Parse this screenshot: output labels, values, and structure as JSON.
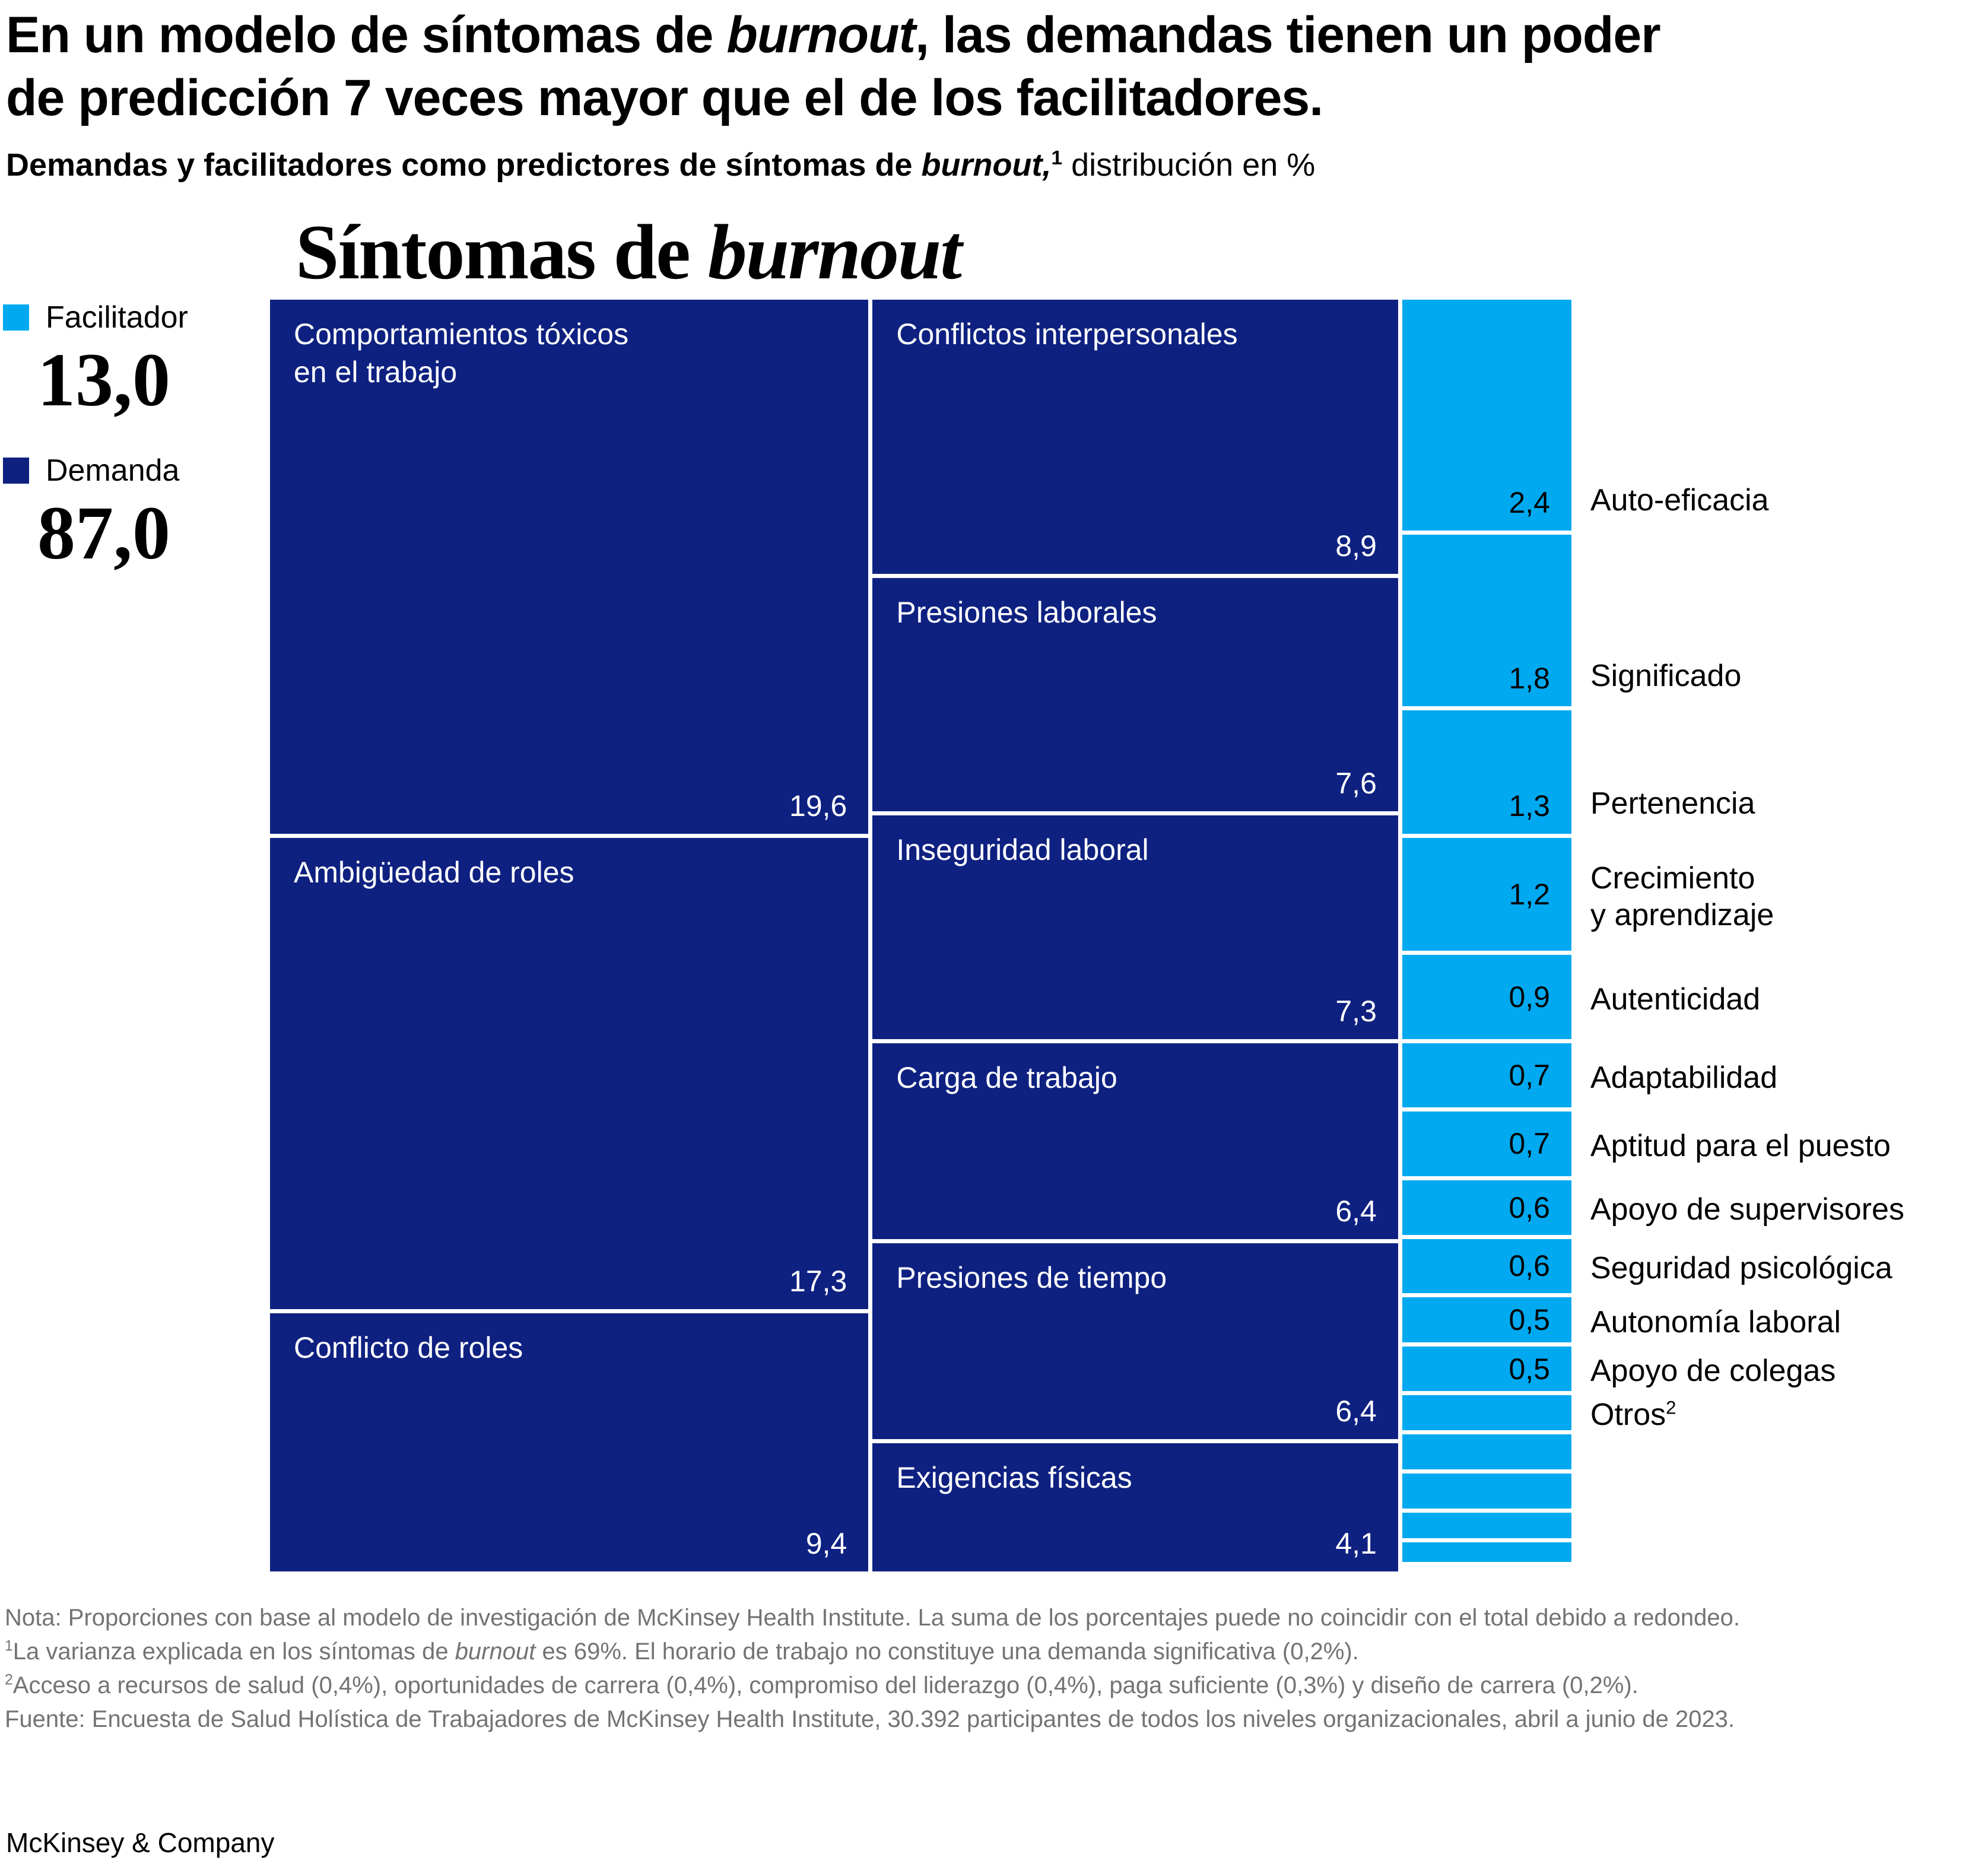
{
  "header": {
    "title_line1_pre": "En un modelo de síntomas de ",
    "title_line1_italic": "burnout",
    "title_line1_post": ", las demandas tienen un poder",
    "title_line2": "de predicción 7 veces mayor que el de los facilitadores.",
    "subtitle_bold": "Demandas y facilitadores como predictores de síntomas de ",
    "subtitle_bold_italic": "burnout,",
    "subtitle_sup": "1",
    "subtitle_rest": " distribución en %"
  },
  "chart_data": {
    "type": "marimekko",
    "title_pre": "Síntomas de ",
    "title_italic": "burnout",
    "unit": "%",
    "legend": [
      {
        "label": "Facilitador",
        "value": "13,0",
        "color": "#00a9f0"
      },
      {
        "label": "Demanda",
        "value": "87,0",
        "color": "#0e2181"
      }
    ],
    "columns": [
      {
        "id": "demandas-1",
        "group": "Demanda",
        "color": "#0e2181",
        "total": 46.3,
        "blocks": [
          {
            "label": "Comportamientos tóxicos\nen el trabajo",
            "value": 19.6,
            "display": "19,6"
          },
          {
            "label": "Ambigüedad de roles",
            "value": 17.3,
            "display": "17,3"
          },
          {
            "label": "Conflicto de roles",
            "value": 9.4,
            "display": "9,4"
          }
        ]
      },
      {
        "id": "demandas-2",
        "group": "Demanda",
        "color": "#0e2181",
        "total": 40.7,
        "blocks": [
          {
            "label": "Conflictos interpersonales",
            "value": 8.9,
            "display": "8,9"
          },
          {
            "label": "Presiones laborales",
            "value": 7.6,
            "display": "7,6"
          },
          {
            "label": "Inseguridad laboral",
            "value": 7.3,
            "display": "7,3"
          },
          {
            "label": "Carga de trabajo",
            "value": 6.4,
            "display": "6,4"
          },
          {
            "label": "Presiones de tiempo",
            "value": 6.4,
            "display": "6,4"
          },
          {
            "label": "Exigencias físicas",
            "value": 4.1,
            "display": "4,1"
          }
        ]
      },
      {
        "id": "facilitadores",
        "group": "Facilitador",
        "color": "#00a9f0",
        "total": 13.0,
        "blocks": [
          {
            "ext_label": "Auto-eficacia",
            "value": 2.4,
            "display": "2,4"
          },
          {
            "ext_label": "Significado",
            "value": 1.8,
            "display": "1,8"
          },
          {
            "ext_label": "Pertenencia",
            "value": 1.3,
            "display": "1,3"
          },
          {
            "ext_label": "Crecimiento\ny aprendizaje",
            "value": 1.2,
            "display": "1,2"
          },
          {
            "ext_label": "Autenticidad",
            "value": 0.9,
            "display": "0,9"
          },
          {
            "ext_label": "Adaptabilidad",
            "value": 0.7,
            "display": "0,7"
          },
          {
            "ext_label": "Aptitud para el puesto",
            "value": 0.7,
            "display": "0,7"
          },
          {
            "ext_label": "Apoyo de supervisores",
            "value": 0.6,
            "display": "0,6"
          },
          {
            "ext_label": "Seguridad psicológica",
            "value": 0.6,
            "display": "0,6"
          },
          {
            "ext_label": "Autonomía laboral",
            "value": 0.5,
            "display": "0,5"
          },
          {
            "ext_label": "Apoyo de colegas",
            "value": 0.5,
            "display": "0,5"
          },
          {
            "ext_label": "Otros",
            "ext_label_sup": "2",
            "value": 1.7,
            "group_values": [
              0.4,
              0.4,
              0.4,
              0.3,
              0.2
            ]
          }
        ]
      }
    ]
  },
  "notes": {
    "note": "Nota: Proporciones con base al modelo de investigación de McKinsey Health Institute. La suma de los porcentajes puede no coincidir con el total debido a redondeo.",
    "fn1_sup": "1",
    "fn1_pre": "La varianza explicada en los síntomas de ",
    "fn1_italic": "burnout",
    "fn1_post": " es 69%. El horario de trabajo no constituye una demanda significativa (0,2%).",
    "fn2_sup": "2",
    "fn2_text": "Acceso a recursos de salud (0,4%), oportunidades de carrera (0,4%), compromiso del liderazgo (0,4%), paga suficiente (0,3%) y diseño de carrera (0,2%).",
    "source": "Fuente: Encuesta de Salud Holística de Trabajadores de McKinsey Health Institute, 30.392 participantes de todos los niveles organizacionales, abril a junio de 2023."
  },
  "footer": {
    "brand": "McKinsey & Company"
  }
}
